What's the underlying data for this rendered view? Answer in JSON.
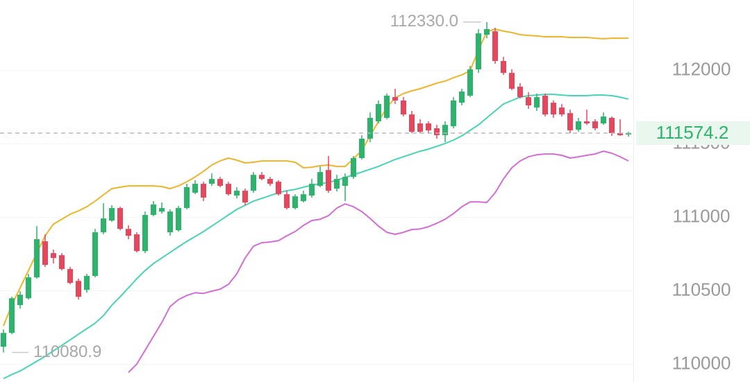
{
  "chart_data": {
    "type": "candlestick",
    "ylim": [
      109880,
      112480
    ],
    "yticks": [
      110000,
      110500,
      111000,
      111500,
      112000
    ],
    "grid": true,
    "up_color": "#2db36b",
    "down_color": "#e5485d",
    "open": [
      110120,
      110214,
      110403,
      110450,
      110592,
      110838,
      110757,
      110743,
      110649,
      110568,
      110507,
      110602,
      110899,
      110979,
      111064,
      110922,
      110885,
      110771,
      111017,
      111040,
      110899,
      110913,
      111064,
      111168,
      111229,
      111229,
      111262,
      111229,
      111149,
      111182,
      111182,
      111290,
      111262,
      111243,
      111158,
      111064,
      111111,
      111149,
      111215,
      111323,
      111196,
      111215,
      111276,
      111404,
      111536,
      111654,
      111678,
      111819,
      111796,
      111701,
      111640,
      111640,
      111607,
      111560,
      111621,
      111781,
      111829,
      112008,
      112244,
      112267,
      112065,
      111984,
      111890,
      111819,
      111748,
      111829,
      111781,
      111748,
      111710,
      111597,
      111654,
      111654,
      111640,
      111678,
      111574,
      111565
    ],
    "high": [
      110238,
      110460,
      110498,
      110616,
      110941,
      110885,
      110781,
      110757,
      110663,
      110583,
      110616,
      110922,
      111097,
      111083,
      111073,
      110946,
      110899,
      111040,
      111111,
      111102,
      111055,
      111078,
      111229,
      111253,
      111243,
      111300,
      111276,
      111243,
      111206,
      111196,
      111309,
      111309,
      111276,
      111253,
      111182,
      111158,
      111182,
      111262,
      111347,
      111418,
      111290,
      111300,
      111418,
      111560,
      111715,
      111796,
      111843,
      111876,
      111819,
      111725,
      111668,
      111654,
      111630,
      111654,
      111819,
      111876,
      112032,
      112282,
      112330,
      112291,
      112093,
      112008,
      111914,
      111852,
      111843,
      111843,
      111796,
      111772,
      111734,
      111678,
      111734,
      111668,
      111715,
      111687,
      111668,
      111583
    ],
    "low": [
      110080.9,
      110205,
      110380,
      110441,
      110583,
      110663,
      110686,
      110639,
      110545,
      110441,
      110488,
      110592,
      110885,
      110970,
      110913,
      110852,
      110762,
      110757,
      111007,
      111026,
      110875,
      110904,
      111055,
      111158,
      111111,
      111215,
      111206,
      111149,
      111130,
      111083,
      111168,
      111253,
      111215,
      111149,
      111055,
      111055,
      111102,
      111135,
      111206,
      111168,
      111177,
      111111,
      111262,
      111394,
      111512,
      111640,
      111668,
      111772,
      111687,
      111574,
      111574,
      111569,
      111536,
      111512,
      111607,
      111763,
      111819,
      111984,
      112220,
      112046,
      111970,
      111866,
      111810,
      111739,
      111725,
      111687,
      111678,
      111687,
      111574,
      111583,
      111630,
      111593,
      111630,
      111555,
      111555,
      111550
    ],
    "close": [
      110214,
      110450,
      110474,
      110592,
      110852,
      110677,
      110724,
      110649,
      110554,
      110460,
      110602,
      110899,
      110993,
      111064,
      110922,
      110875,
      110771,
      111017,
      111088,
      111064,
      111040,
      111064,
      111206,
      111229,
      111135,
      111262,
      111215,
      111158,
      111182,
      111102,
      111290,
      111262,
      111229,
      111158,
      111064,
      111144,
      111158,
      111229,
      111309,
      111182,
      111262,
      111276,
      111404,
      111536,
      111678,
      111772,
      111829,
      111796,
      111701,
      111583,
      111583,
      111593,
      111560,
      111630,
      111796,
      111857,
      112008,
      112253,
      112282,
      112065,
      111984,
      111876,
      111819,
      111763,
      111819,
      111701,
      111701,
      111701,
      111593,
      111654,
      111640,
      111607,
      111687,
      111574,
      111560,
      111574.2
    ],
    "series": [
      {
        "color": "#f0b429",
        "values": [
          110262,
          110403,
          110521,
          110639,
          110757,
          110875,
          110955,
          110988,
          111022,
          111045,
          111073,
          111111,
          111154,
          111196,
          111206,
          111215,
          111215,
          111215,
          111215,
          111210,
          111196,
          111215,
          111243,
          111276,
          111314,
          111357,
          111385,
          111404,
          111390,
          111371,
          111376,
          111385,
          111385,
          111385,
          111385,
          111376,
          111338,
          111342,
          111352,
          111357,
          111347,
          111347,
          111399,
          111456,
          111555,
          111654,
          111748,
          111814,
          111843,
          111862,
          111876,
          111895,
          111914,
          111928,
          111951,
          111970,
          111999,
          112140,
          112263,
          112282,
          112268,
          112258,
          112244,
          112239,
          112235,
          112230,
          112230,
          112230,
          112225,
          112225,
          112225,
          112220,
          112216,
          112220,
          112220,
          112220
        ]
      },
      {
        "color": "#45d4b4",
        "values": [
          109903,
          109931,
          109955,
          109988,
          110021,
          110054,
          110092,
          110129,
          110167,
          110205,
          110243,
          110280,
          110332,
          110403,
          110460,
          110521,
          110583,
          110639,
          110686,
          110724,
          110762,
          110800,
          110837,
          110870,
          110904,
          110941,
          110979,
          111017,
          111055,
          111083,
          111111,
          111130,
          111149,
          111168,
          111182,
          111191,
          111206,
          111220,
          111229,
          111239,
          111253,
          111272,
          111291,
          111309,
          111328,
          111347,
          111371,
          111394,
          111413,
          111432,
          111451,
          111465,
          111484,
          111503,
          111527,
          111555,
          111593,
          111630,
          111678,
          111725,
          111772,
          111796,
          111819,
          111829,
          111833,
          111838,
          111838,
          111833,
          111829,
          111829,
          111829,
          111833,
          111833,
          111829,
          111819,
          111805
        ]
      },
      {
        "color": "#d66bd6",
        "values": [
          null,
          null,
          null,
          null,
          null,
          null,
          null,
          null,
          null,
          null,
          null,
          null,
          null,
          null,
          null,
          109945,
          110002,
          110096,
          110191,
          110285,
          110394,
          110441,
          110469,
          110488,
          110483,
          110498,
          110512,
          110545,
          110616,
          110724,
          110804,
          110828,
          110833,
          110842,
          110875,
          110904,
          110946,
          110979,
          110988,
          111012,
          111064,
          111092,
          111073,
          111040,
          110993,
          110941,
          110899,
          110885,
          110899,
          110918,
          110922,
          110937,
          110960,
          110988,
          111026,
          111073,
          111106,
          111106,
          111102,
          111168,
          111262,
          111338,
          111385,
          111413,
          111427,
          111432,
          111432,
          111423,
          111404,
          111413,
          111423,
          111432,
          111451,
          111437,
          111413,
          111385
        ]
      }
    ],
    "max_label": {
      "value": 112330,
      "label": "112330.0"
    },
    "min_label": {
      "value": 110080.9,
      "label": "110080.9"
    },
    "last_price": 111574.2
  }
}
